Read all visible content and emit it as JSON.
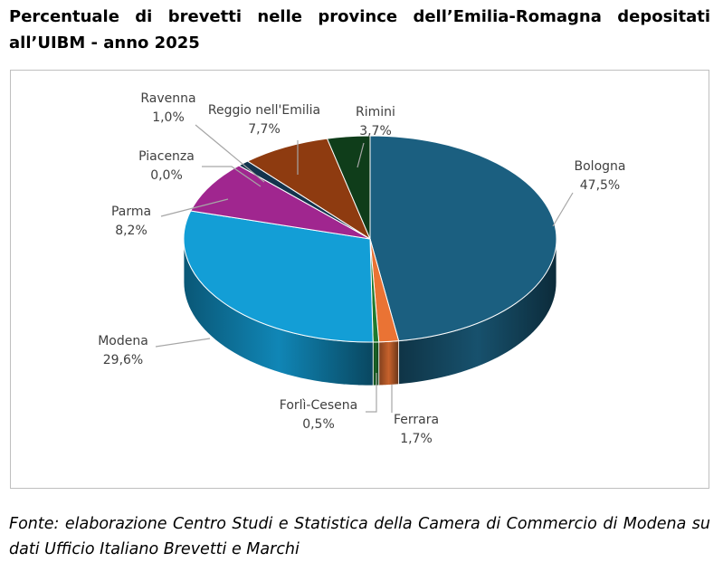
{
  "title": "Percentuale di brevetti nelle province dell’Emilia-Romagna depositati all’UIBM - anno 2025",
  "source": "Fonte: elaborazione Centro Studi e Statistica della Camera di Commercio di Modena su dati Ufficio Italiano Brevetti e Marchi",
  "chart_data": {
    "type": "pie",
    "style": "3d",
    "title": "",
    "legend": "none",
    "slices": [
      {
        "label": "Bologna",
        "value": 47.5,
        "text": "47,5%",
        "color": "#1b5f80"
      },
      {
        "label": "Ferrara",
        "value": 1.7,
        "text": "1,7%",
        "color": "#ea7334"
      },
      {
        "label": "Forlì-Cesena",
        "value": 0.5,
        "text": "0,5%",
        "color": "#1e7a2e"
      },
      {
        "label": "Modena",
        "value": 29.6,
        "text": "29,6%",
        "color": "#139ed6"
      },
      {
        "label": "Parma",
        "value": 8.2,
        "text": "8,2%",
        "color": "#a0268f"
      },
      {
        "label": "Piacenza",
        "value": 0.0,
        "text": "0,0%",
        "color": "#3a3a3a"
      },
      {
        "label": "Ravenna",
        "value": 1.0,
        "text": "1,0%",
        "color": "#14344d"
      },
      {
        "label": "Reggio nell'Emilia",
        "value": 7.7,
        "text": "7,7%",
        "color": "#8e3b10"
      },
      {
        "label": "Rimini",
        "value": 3.7,
        "text": "3,7%",
        "color": "#0f3d1a"
      }
    ]
  }
}
